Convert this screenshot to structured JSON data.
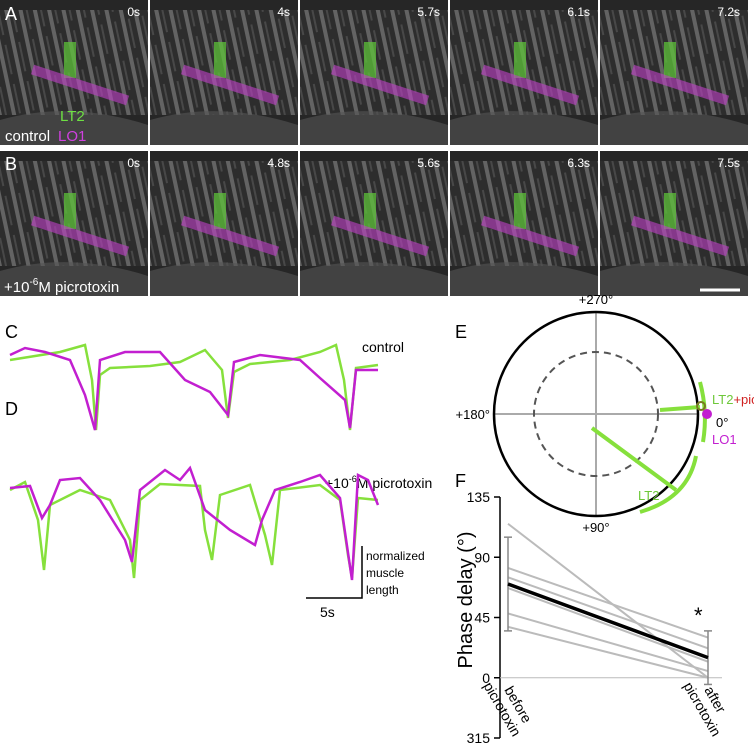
{
  "panel_a": {
    "letter": "A",
    "times": [
      "0s",
      "4s",
      "5.7s",
      "6.1s",
      "7.2s"
    ],
    "labels": [
      "LT2",
      "LO1"
    ],
    "condition": "control"
  },
  "panel_b": {
    "letter": "B",
    "times": [
      "0s",
      "4.8s",
      "5.6s",
      "6.3s",
      "7.5s"
    ],
    "condition": [
      "+10",
      "-6",
      "M picrotoxin"
    ]
  },
  "panel_c": {
    "letter": "C",
    "condition": "control"
  },
  "panel_d": {
    "letter": "D",
    "condition": [
      "+10",
      "-6",
      "M picrotoxin"
    ],
    "scale_y": [
      "normalized",
      "muscle",
      "length"
    ],
    "scale_x": "5s"
  },
  "panel_e": {
    "letter": "E",
    "angles": [
      "+270°",
      "+180°",
      "+90°",
      "0°"
    ],
    "lt2_picrotoxin": [
      "LT2",
      "+picrotoxin"
    ],
    "lo1": "LO1",
    "lt2": "LT2"
  },
  "chart_data": {
    "letter": "F",
    "type": "line",
    "ylabel": "Phase delay (°)",
    "categories": [
      "before picrotoxin",
      "after picrotoxin"
    ],
    "ylim": [
      -45,
      135
    ],
    "yticks": [
      {
        "value": -45,
        "label": "315"
      },
      0,
      45,
      90,
      135
    ],
    "series": [
      {
        "color": "#bbbbbb",
        "values": [
          115,
          0
        ]
      },
      {
        "color": "#bbbbbb",
        "values": [
          82,
          30
        ]
      },
      {
        "color": "#bbbbbb",
        "values": [
          75,
          22
        ]
      },
      {
        "color": "#bbbbbb",
        "values": [
          67,
          12
        ]
      },
      {
        "color": "#bbbbbb",
        "values": [
          48,
          5
        ]
      },
      {
        "color": "#bbbbbb",
        "values": [
          38,
          0
        ]
      },
      {
        "color": "#000000",
        "values": [
          70,
          15
        ],
        "errors": [
          35,
          20
        ]
      }
    ],
    "annotation": "*"
  }
}
